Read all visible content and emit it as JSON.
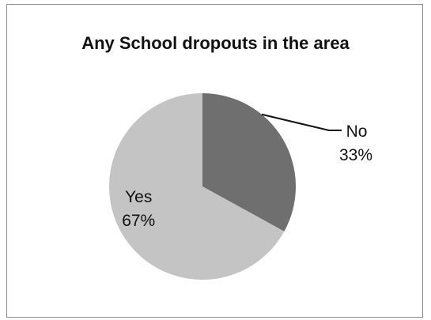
{
  "chart_data": {
    "type": "pie",
    "title": "Any School dropouts in the area",
    "slices": [
      {
        "label": "No",
        "value": 33,
        "value_label": "33%",
        "color": "#6f6f6f"
      },
      {
        "label": "Yes",
        "value": 67,
        "value_label": "67%",
        "color": "#c4c4c4"
      }
    ],
    "start_angle": "12 o'clock",
    "direction": "clockwise",
    "legend": "none",
    "label_position": {
      "No": "outside-right-with-leader",
      "Yes": "inside"
    }
  }
}
